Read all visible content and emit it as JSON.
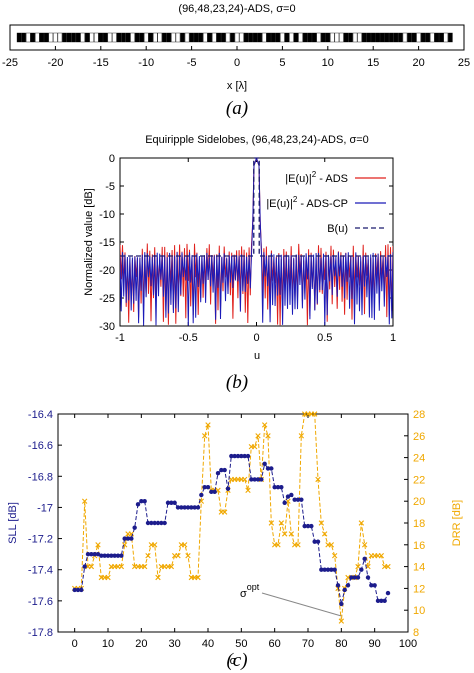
{
  "chart_data": [
    {
      "id": "a",
      "type": "array-layout",
      "title": "(96,48,23,24)-ADS, σ=0",
      "xlabel": "x [λ]",
      "caption_letter": "a",
      "xlim": [
        -25,
        25
      ],
      "xticks": [
        -25,
        -20,
        -15,
        -10,
        -5,
        0,
        5,
        10,
        15,
        20,
        25
      ],
      "element_positions_start": -24,
      "element_spacing": 0.5,
      "sequence": "110101100011110100110011101101001100101110101101001111011101010111011000110011111111101101101101"
    },
    {
      "id": "b",
      "type": "line",
      "title": "Equiripple Sidelobes, (96,48,23,24)-ADS, σ=0",
      "xlabel": "u",
      "ylabel": "Normalized value [dB]",
      "xlim": [
        -1,
        1
      ],
      "ylim": [
        -30,
        0
      ],
      "xticks": [
        -1,
        -0.5,
        0,
        0.5,
        1
      ],
      "yticks": [
        0,
        -5,
        -10,
        -15,
        -20,
        -25,
        -30
      ],
      "caption_letter": "b",
      "legend_position": "top-right",
      "series": [
        {
          "name": "|E(u)|² - ADS",
          "legend_main": "|E(u)|",
          "legend_sup": "2",
          "legend_tail": " - ADS",
          "color": "#e0201c",
          "style": "solid"
        },
        {
          "name": "|E(u)|² - ADS-CP",
          "legend_main": "|E(u)|",
          "legend_sup": "2",
          "legend_tail": " - ADS-CP",
          "color": "#1b1bb8",
          "style": "solid"
        },
        {
          "name": "B(u)",
          "legend_main": "B(u)",
          "legend_sup": "",
          "legend_tail": "",
          "color": "#1a1a6e",
          "style": "dashed",
          "constant": -17.5
        }
      ]
    },
    {
      "id": "c",
      "type": "line",
      "xlabel": "σ",
      "ylabel": "SLL [dB]",
      "y2label": "DRR [dB]",
      "xlim": [
        -5,
        100
      ],
      "ylim": [
        -17.8,
        -16.4
      ],
      "y2lim": [
        8,
        28
      ],
      "xticks": [
        0,
        10,
        20,
        30,
        40,
        50,
        60,
        70,
        80,
        90,
        100
      ],
      "yticks": [
        -16.4,
        -16.6,
        -16.8,
        -17,
        -17.2,
        -17.4,
        -17.6,
        -17.8
      ],
      "ytick_labels": [
        "-16.4",
        "-16.6",
        "-16.8",
        "-17",
        "-17.2",
        "-17.4",
        "-17.6",
        "-17.8"
      ],
      "y2ticks": [
        8,
        10,
        12,
        14,
        16,
        18,
        20,
        22,
        24,
        26,
        28
      ],
      "annotation": {
        "text": "σ",
        "sup": "opt",
        "at": [
          80,
          -17.62
        ]
      },
      "caption_letter": "c",
      "series": [
        {
          "name": "SLL",
          "axis": "left",
          "color": "#1c1c8c",
          "style": "dashed",
          "marker": "circle",
          "x": [
            0,
            1,
            2,
            3,
            4,
            5,
            6,
            7,
            8,
            9,
            10,
            11,
            12,
            13,
            14,
            15,
            16,
            17,
            18,
            19,
            20,
            21,
            22,
            23,
            24,
            25,
            26,
            27,
            28,
            29,
            30,
            31,
            32,
            33,
            34,
            35,
            36,
            37,
            38,
            39,
            40,
            41,
            42,
            43,
            44,
            45,
            46,
            47,
            48,
            49,
            50,
            51,
            52,
            53,
            54,
            55,
            56,
            57,
            58,
            59,
            60,
            61,
            62,
            63,
            64,
            65,
            66,
            67,
            68,
            69,
            70,
            71,
            72,
            73,
            74,
            75,
            76,
            77,
            78,
            79,
            80,
            81,
            82,
            83,
            84,
            85,
            86,
            87,
            88,
            89,
            90,
            91,
            92,
            93,
            94
          ],
          "y": [
            -17.53,
            -17.53,
            -17.53,
            -17.38,
            -17.3,
            -17.3,
            -17.3,
            -17.3,
            -17.31,
            -17.31,
            -17.31,
            -17.31,
            -17.31,
            -17.31,
            -17.31,
            -17.2,
            -17.2,
            -17.2,
            -17.13,
            -16.98,
            -16.96,
            -16.96,
            -17.1,
            -17.1,
            -17.1,
            -17.1,
            -17.1,
            -17.1,
            -16.97,
            -16.97,
            -16.97,
            -17.0,
            -17.0,
            -17.0,
            -17.0,
            -17.0,
            -17.0,
            -17.0,
            -16.92,
            -16.87,
            -16.87,
            -16.9,
            -16.9,
            -16.78,
            -16.76,
            -16.76,
            -16.88,
            -16.67,
            -16.67,
            -16.67,
            -16.67,
            -16.67,
            -16.67,
            -16.82,
            -16.82,
            -16.82,
            -16.82,
            -16.72,
            -16.75,
            -16.75,
            -16.87,
            -16.87,
            -16.87,
            -16.97,
            -16.93,
            -16.92,
            -16.95,
            -16.95,
            -16.95,
            -17.12,
            -17.12,
            -17.12,
            -17.22,
            -17.22,
            -17.4,
            -17.4,
            -17.4,
            -17.4,
            -17.4,
            -17.5,
            -17.62,
            -17.53,
            -17.5,
            -17.45,
            -17.45,
            -17.45,
            -17.4,
            -17.33,
            -17.45,
            -17.5,
            -17.5,
            -17.6,
            -17.6,
            -17.6,
            -17.55
          ]
        },
        {
          "name": "DRR",
          "axis": "right",
          "color": "#f0a800",
          "style": "dashed",
          "marker": "x",
          "x": [
            0,
            1,
            2,
            3,
            4,
            5,
            6,
            7,
            8,
            9,
            10,
            11,
            12,
            13,
            14,
            15,
            16,
            17,
            18,
            19,
            20,
            21,
            22,
            23,
            24,
            25,
            26,
            27,
            28,
            29,
            30,
            31,
            32,
            33,
            34,
            35,
            36,
            37,
            38,
            39,
            40,
            41,
            42,
            43,
            44,
            45,
            46,
            47,
            48,
            49,
            50,
            51,
            52,
            53,
            54,
            55,
            56,
            57,
            58,
            59,
            60,
            61,
            62,
            63,
            64,
            65,
            66,
            67,
            68,
            69,
            70,
            71,
            72,
            73,
            74,
            75,
            76,
            77,
            78,
            79,
            80,
            81,
            82,
            83,
            84,
            85,
            86,
            87,
            88,
            89,
            90,
            91,
            92,
            93,
            94
          ],
          "y": [
            12,
            12,
            12,
            20,
            14,
            14,
            15,
            16,
            13,
            13,
            13,
            14,
            14,
            14,
            14,
            16,
            17,
            17,
            14,
            14,
            14,
            14,
            15,
            16,
            16,
            13,
            14,
            14,
            14,
            14,
            15,
            15,
            16,
            16,
            15,
            13,
            13,
            13,
            20,
            26,
            27,
            21,
            21,
            21,
            19,
            19,
            21,
            22,
            22,
            22,
            22,
            22,
            21,
            25,
            25,
            26,
            22,
            27,
            26,
            18,
            16,
            16,
            18,
            17,
            20,
            17,
            16,
            16,
            26,
            28,
            28,
            28,
            28,
            22,
            18,
            17,
            16,
            16,
            15,
            12,
            9,
            12,
            13,
            13,
            13,
            14,
            18,
            16,
            14,
            15,
            15,
            15,
            15,
            14,
            14
          ]
        }
      ]
    }
  ]
}
